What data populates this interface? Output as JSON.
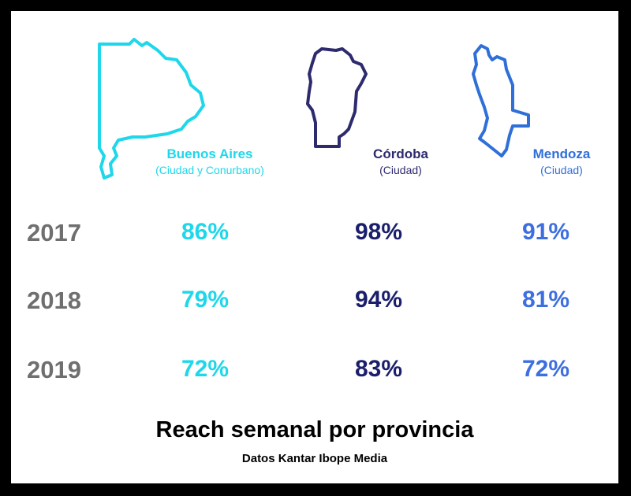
{
  "chart_data": {
    "type": "table",
    "title": "Reach semanal por provincia",
    "subtitle": "Datos Kantar Ibope Media",
    "columns": [
      {
        "name": "Buenos Aires",
        "detail": "(Ciudad y Conurbano)",
        "color": "#1ed7ea"
      },
      {
        "name": "Córdoba",
        "detail": "(Ciudad)",
        "color": "#1b1f6b"
      },
      {
        "name": "Mendoza",
        "detail": "(Ciudad)",
        "color": "#3d6fe0"
      }
    ],
    "years": [
      "2017",
      "2018",
      "2019"
    ],
    "values": [
      [
        "86%",
        "98%",
        "91%"
      ],
      [
        "79%",
        "94%",
        "81%"
      ],
      [
        "72%",
        "83%",
        "72%"
      ]
    ]
  }
}
